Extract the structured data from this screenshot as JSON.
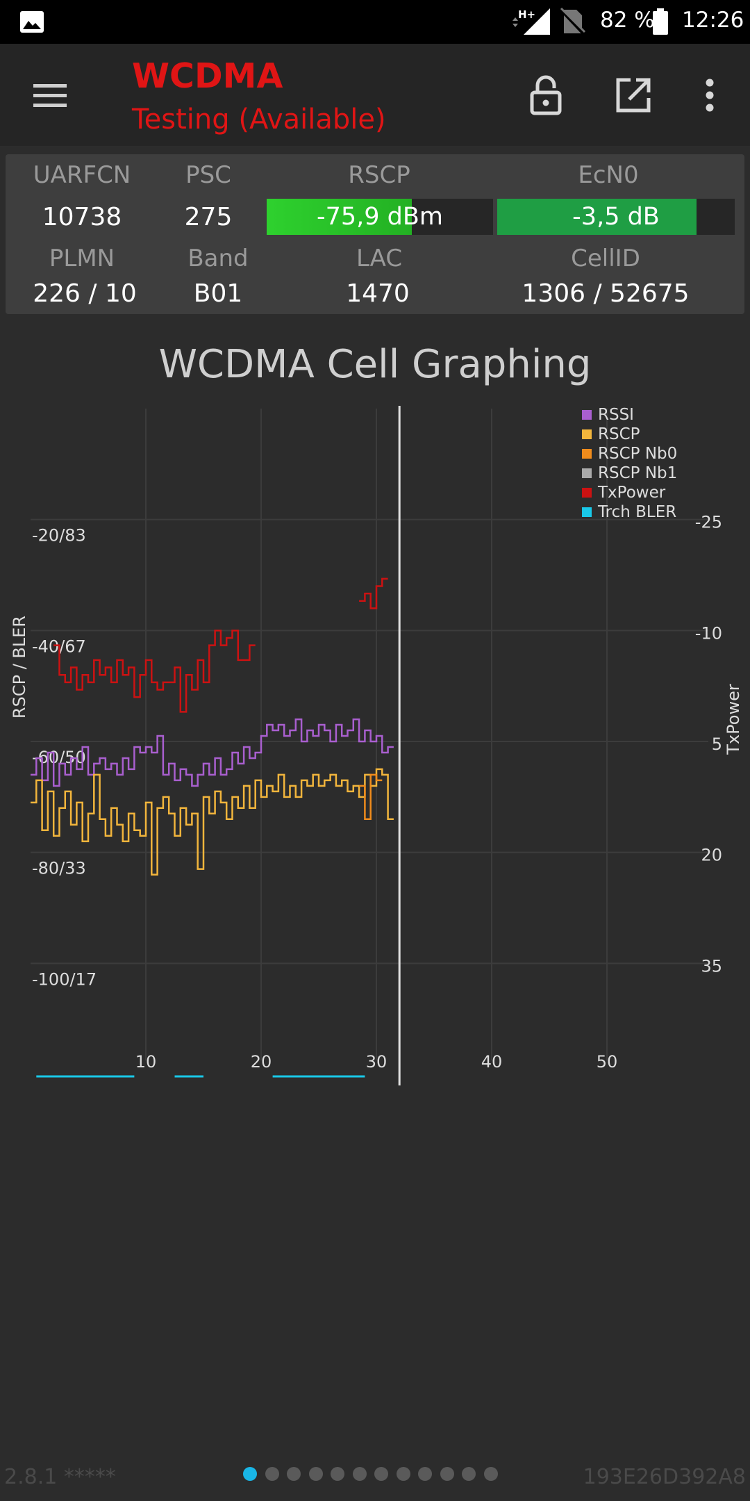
{
  "status_bar": {
    "battery_percent": "82 %",
    "time": "12:26",
    "network_type": "H+",
    "icons": [
      "gallery-icon",
      "signal-icon",
      "no-sim-icon",
      "battery-icon"
    ]
  },
  "app_bar": {
    "title": "WCDMA",
    "subtitle": "Testing (Available)",
    "accent_color": "#e01515",
    "icons": [
      "menu-icon",
      "lock-icon",
      "open-external-icon",
      "more-vert-icon"
    ]
  },
  "cell_info": {
    "row1_labels": {
      "uarfcn": "UARFCN",
      "psc": "PSC",
      "rscp": "RSCP",
      "ecn0": "EcN0"
    },
    "row1_values": {
      "uarfcn": "10738",
      "psc": "275",
      "rscp": "-75,9 dBm",
      "ecn0": "-3,5 dB"
    },
    "rscp_level": 0.64,
    "ecn0_level": 0.84,
    "rscp_color": "#2ed12e",
    "ecn0_color": "#1f9e44",
    "row2_labels": {
      "plmn": "PLMN",
      "band": "Band",
      "lac": "LAC",
      "cellid": "CellID"
    },
    "row2_values": {
      "plmn": "226 / 10",
      "band": "B01",
      "lac": "1470",
      "cellid": "1306 / 52675"
    }
  },
  "chart_title": "WCDMA Cell Graphing",
  "chart_data": {
    "type": "line",
    "title": "WCDMA Cell Graphing",
    "ylabel": "RSCP / BLER",
    "y2label": "TxPower",
    "x_ticks": [
      10,
      20,
      30,
      40,
      50
    ],
    "xlim": [
      0,
      60
    ],
    "y_ticks_left": [
      "-20/83",
      "-40/67",
      "-60/50",
      "-80/33",
      "-100/17"
    ],
    "y_ticks_left_values": [
      -20,
      -40,
      -60,
      -80,
      -100
    ],
    "ylim": [
      0,
      -120
    ],
    "y_ticks_right": [
      "-25",
      "-10",
      "5",
      "20",
      "35"
    ],
    "y_ticks_right_values": [
      -25,
      -10,
      5,
      20,
      35
    ],
    "y2lim": [
      -40,
      50
    ],
    "cursor_x": 32,
    "grid": true,
    "legend_position": "top-right",
    "legend": [
      "RSSI",
      "RSCP",
      "RSCP Nb0",
      "RSCP Nb1",
      "TxPower",
      "Trch BLER"
    ],
    "series": [
      {
        "name": "RSSI",
        "color": "#a95fcf",
        "axis": "left",
        "x": [
          0,
          0.5,
          1,
          1.5,
          2,
          2.5,
          3,
          3.5,
          4,
          4.5,
          5,
          5.5,
          6,
          6.5,
          7,
          7.5,
          8,
          8.5,
          9,
          9.5,
          10,
          10.5,
          11,
          11.5,
          12,
          12.5,
          13,
          13.5,
          14,
          14.5,
          15,
          15.5,
          16,
          16.5,
          17,
          17.5,
          18,
          18.5,
          19,
          19.5,
          20,
          20.5,
          21,
          21.5,
          22,
          22.5,
          23,
          23.5,
          24,
          24.5,
          25,
          25.5,
          26,
          26.5,
          27,
          27.5,
          28,
          28.5,
          29,
          29.5,
          30,
          30.5,
          31
        ],
        "y": [
          -66,
          -63,
          -67,
          -62,
          -68,
          -64,
          -66,
          -63,
          -65,
          -61,
          -66,
          -64,
          -63,
          -65,
          -64,
          -66,
          -63,
          -65,
          -61,
          -62,
          -61,
          -62,
          -59,
          -66,
          -64,
          -67,
          -65,
          -66,
          -68,
          -66,
          -64,
          -66,
          -63,
          -66,
          -65,
          -62,
          -64,
          -61,
          -63,
          -62,
          -59,
          -57,
          -58,
          -57,
          -59,
          -58,
          -56,
          -60,
          -58,
          -59,
          -57,
          -58,
          -60,
          -57,
          -59,
          -58,
          -56,
          -60,
          -58,
          -60,
          -59,
          -62,
          -61
        ]
      },
      {
        "name": "RSCP",
        "color": "#f2b53c",
        "axis": "left",
        "x": [
          0,
          0.5,
          1,
          1.5,
          2,
          2.5,
          3,
          3.5,
          4,
          4.5,
          5,
          5.5,
          6,
          6.5,
          7,
          7.5,
          8,
          8.5,
          9,
          9.5,
          10,
          10.5,
          11,
          11.5,
          12,
          12.5,
          13,
          13.5,
          14,
          14.5,
          15,
          15.5,
          16,
          16.5,
          17,
          17.5,
          18,
          18.5,
          19,
          19.5,
          20,
          20.5,
          21,
          21.5,
          22,
          22.5,
          23,
          23.5,
          24,
          24.5,
          25,
          25.5,
          26,
          26.5,
          27,
          27.5,
          28,
          28.5,
          29,
          29.5,
          30,
          30.5,
          31
        ],
        "y": [
          -71,
          -67,
          -76,
          -69,
          -77,
          -72,
          -69,
          -75,
          -71,
          -78,
          -73,
          -66,
          -74,
          -77,
          -72,
          -75,
          -78,
          -73,
          -76,
          -77,
          -71,
          -84,
          -72,
          -70,
          -73,
          -77,
          -72,
          -75,
          -73,
          -83,
          -70,
          -73,
          -69,
          -71,
          -74,
          -70,
          -72,
          -68,
          -72,
          -67,
          -70,
          -68,
          -69,
          -66,
          -70,
          -68,
          -70,
          -67,
          -68,
          -66,
          -68,
          -67,
          -66,
          -68,
          -67,
          -69,
          -68,
          -70,
          -66,
          -68,
          -65,
          -66,
          -74
        ]
      },
      {
        "name": "RSCP Nb0",
        "color": "#f08c1c",
        "axis": "left",
        "x": [
          28.5,
          29,
          29.5,
          30
        ],
        "y": [
          -68,
          -74,
          -66,
          -67
        ]
      },
      {
        "name": "RSCP Nb1",
        "color": "#aaaaaa",
        "axis": "left",
        "x": [],
        "y": []
      },
      {
        "name": "TxPower",
        "color": "#cc1212",
        "axis": "right",
        "x": [
          2,
          2.5,
          3,
          3.5,
          4,
          4.5,
          5,
          5.5,
          6,
          6.5,
          7,
          7.5,
          8,
          8.5,
          9,
          9.5,
          10,
          10.5,
          11,
          11.5,
          12,
          12.5,
          13,
          13.5,
          14,
          14.5,
          15,
          15.5,
          16,
          16.5,
          17,
          17.5,
          18,
          18.5,
          19
        ],
        "y": [
          -8,
          -4,
          -3,
          -5,
          -2,
          -4,
          -3,
          -6,
          -4,
          -5,
          -3,
          -6,
          -4,
          -5,
          -1,
          -4,
          -6,
          -3,
          -2,
          -3,
          -3,
          -5,
          1,
          -4,
          -2,
          -6,
          -3,
          -8,
          -10,
          -8,
          -9,
          -10,
          -6,
          -6,
          -8
        ]
      },
      {
        "name": "TxPower",
        "color": "#cc1212",
        "axis": "right",
        "x": [
          28.5,
          29,
          29.5,
          30,
          30.5
        ],
        "y": [
          -14,
          -15,
          -13,
          -16,
          -17
        ]
      },
      {
        "name": "Trch BLER",
        "color": "#19c8e8",
        "axis": "left",
        "x": [
          0.5,
          9,
          12.5,
          15,
          21,
          29
        ],
        "y": [
          0,
          0,
          0,
          0,
          0,
          0
        ]
      }
    ]
  },
  "footer": {
    "version": "2.8.1 *****",
    "device_id": "193E26D392A8",
    "page_count": 12,
    "active_page": 0
  }
}
